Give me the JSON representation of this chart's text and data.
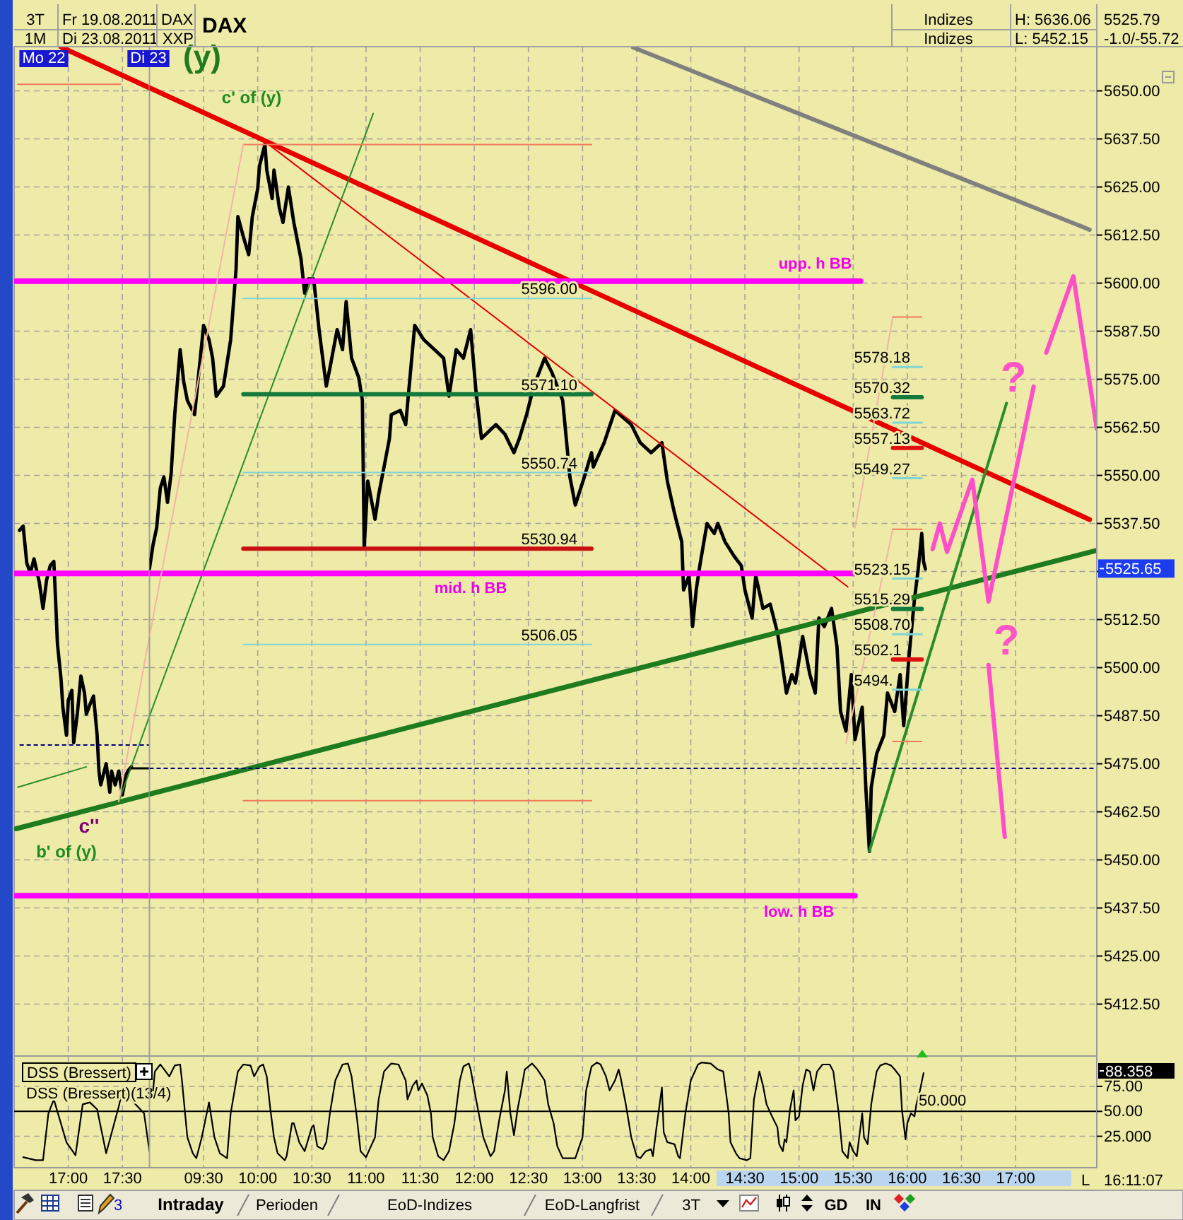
{
  "chart_data": [
    {
      "type": "line",
      "tick_labels": false,
      "grid": true,
      "line_style": "solid",
      "xlim": [
        "2011-08-22T16:30",
        "2011-08-22T17:45"
      ],
      "xticks": [
        {
          "value": "2011-08-22T17:00",
          "label": null
        },
        {
          "value": "2011-08-22T17:30",
          "label": null
        }
      ],
      "ylim": [
        5399,
        5661.5
      ],
      "yticks": [
        {
          "value": 5412.5,
          "label": null
        },
        {
          "value": 5425,
          "label": null
        },
        {
          "value": 5437.5,
          "label": null
        },
        {
          "value": 5450,
          "label": null
        },
        {
          "value": 5462.5,
          "label": null
        },
        {
          "value": 5475,
          "label": null
        },
        {
          "value": 5487.5,
          "label": null
        },
        {
          "value": 5500,
          "label": null
        },
        {
          "value": 5512.5,
          "label": null
        },
        {
          "value": 5525,
          "label": null
        },
        {
          "value": 5537.5,
          "label": null
        },
        {
          "value": 5550,
          "label": null
        },
        {
          "value": 5562.5,
          "label": null
        },
        {
          "value": 5575,
          "label": null
        },
        {
          "value": 5587.5,
          "label": null
        },
        {
          "value": 5600,
          "label": null
        },
        {
          "value": 5612.5,
          "label": null
        },
        {
          "value": 5625,
          "label": null
        },
        {
          "value": 5637.5,
          "label": null
        },
        {
          "value": 5650,
          "label": null
        }
      ],
      "annotations": [
        "Mo 22",
        "c''",
        "b' of (y)"
      ],
      "series": [
        {
          "color": "#000000",
          "x": [
            "2011-08-22T16:33",
            "2011-08-22T16:35",
            "2011-08-22T16:37",
            "2011-08-22T16:39",
            "2011-08-22T16:41",
            "2011-08-22T16:44",
            "2011-08-22T16:46",
            "2011-08-22T16:48",
            "2011-08-22T16:50",
            "2011-08-22T16:52",
            "2011-08-22T16:53",
            "2011-08-22T16:54",
            "2011-08-22T16:56",
            "2011-08-22T16:57",
            "2011-08-22T16:59",
            "2011-08-22T17:00",
            "2011-08-22T17:02",
            "2011-08-22T17:03",
            "2011-08-22T17:05",
            "2011-08-22T17:07",
            "2011-08-22T17:09",
            "2011-08-22T17:10",
            "2011-08-22T17:12",
            "2011-08-22T17:14",
            "2011-08-22T17:16",
            "2011-08-22T17:17",
            "2011-08-22T17:18",
            "2011-08-22T17:21",
            "2011-08-22T17:23",
            "2011-08-22T17:24",
            "2011-08-22T17:26",
            "2011-08-22T17:28",
            "2011-08-22T17:30",
            "2011-08-22T17:32",
            "2011-08-22T17:33",
            "2011-08-22T17:35"
          ],
          "values": [
            5535.7,
            5536.8,
            5527.2,
            5524.6,
            5528.3,
            5522.1,
            5515.4,
            5522.8,
            5526.5,
            5527.6,
            5517.3,
            5506.2,
            5497.0,
            5489.7,
            5482.4,
            5491.5,
            5494.1,
            5480.5,
            5487.9,
            5497.8,
            5493.4,
            5487.9,
            5490.4,
            5492.6,
            5482.4,
            5473.1,
            5469.5,
            5475.0,
            5467.6,
            5473.1,
            5469.5,
            5473.1,
            5466.9,
            5472.1,
            5473.1,
            5474.2
          ]
        },
        {
          "color": "#e60000",
          "x": [
            "2011-08-22T16:56",
            "2011-08-22T17:45"
          ],
          "values": [
            5661.4,
            5650.8
          ]
        },
        {
          "color": "#1e7b1e",
          "x": [
            "2011-08-22T16:31",
            "2011-08-22T17:45"
          ],
          "values": [
            5458.1,
            5467.1
          ]
        },
        {
          "color": "#2a8c2a",
          "x": [
            "2011-08-22T17:28",
            "2011-08-22T17:45"
          ],
          "values": [
            5465.2,
            5487.4
          ]
        },
        {
          "color": "#2a8c2a",
          "x": [
            "2011-08-22T16:32",
            "2011-08-22T17:10"
          ],
          "values": [
            5468.9,
            5474.2
          ]
        },
        {
          "color": "#ff00ff",
          "x": [
            "2011-08-22T16:31",
            "2011-08-22T17:45"
          ],
          "values": [
            5600.5,
            5600.5
          ]
        },
        {
          "color": "#ff00ff",
          "x": [
            "2011-08-22T16:31",
            "2011-08-22T17:45"
          ],
          "values": [
            5524.5,
            5524.5
          ]
        },
        {
          "color": "#ff00ff",
          "x": [
            "2011-08-22T16:31",
            "2011-08-22T17:45"
          ],
          "values": [
            5440.7,
            5440.7
          ]
        },
        {
          "color": "#f27a5a",
          "x": [
            "2011-08-22T16:32",
            "2011-08-22T17:29"
          ],
          "values": [
            5651.7,
            5651.7
          ]
        },
        {
          "color": "#f4b4a4",
          "x": [
            "2011-08-22T17:28",
            "2011-08-22T17:45"
          ],
          "values": [
            5465.2,
            5508.2
          ]
        },
        {
          "color": "#000080",
          "line_style": "dashed",
          "x": [
            "2011-08-22T16:33",
            "2011-08-22T17:45"
          ],
          "values": [
            5479.9,
            5479.9
          ]
        },
        {
          "color": "#000000",
          "x": [
            "2011-08-22T17:35",
            "2011-08-22T17:45"
          ],
          "values": [
            5473.8,
            5473.8
          ]
        }
      ]
    },
    {
      "type": "line",
      "title": "DAX",
      "tick_labels": "y",
      "grid": true,
      "line_style": "solid",
      "xlim": [
        "2011-08-23T09:00",
        "2011-08-23T17:45"
      ],
      "xticks": [
        {
          "value": "2011-08-23T09:30",
          "label": null
        },
        {
          "value": "2011-08-23T10:00",
          "label": null
        },
        {
          "value": "2011-08-23T10:30",
          "label": null
        },
        {
          "value": "2011-08-23T11:00",
          "label": null
        },
        {
          "value": "2011-08-23T11:30",
          "label": null
        },
        {
          "value": "2011-08-23T12:00",
          "label": null
        },
        {
          "value": "2011-08-23T12:30",
          "label": null
        },
        {
          "value": "2011-08-23T13:00",
          "label": null
        },
        {
          "value": "2011-08-23T13:30",
          "label": null
        },
        {
          "value": "2011-08-23T14:00",
          "label": null
        },
        {
          "value": "2011-08-23T14:30",
          "label": null
        },
        {
          "value": "2011-08-23T15:00",
          "label": null
        },
        {
          "value": "2011-08-23T15:30",
          "label": null
        },
        {
          "value": "2011-08-23T16:00",
          "label": null
        },
        {
          "value": "2011-08-23T16:30",
          "label": null
        },
        {
          "value": "2011-08-23T17:00",
          "label": null
        }
      ],
      "ylim": [
        5399,
        5661.5
      ],
      "yticks": [
        {
          "value": 5412.5,
          "label": "5412.50"
        },
        {
          "value": 5425,
          "label": "5425.00"
        },
        {
          "value": 5437.5,
          "label": "5437.50"
        },
        {
          "value": 5450,
          "label": "5450.00"
        },
        {
          "value": 5462.5,
          "label": "5462.50"
        },
        {
          "value": 5475,
          "label": "5475.00"
        },
        {
          "value": 5487.5,
          "label": "5487.50"
        },
        {
          "value": 5500,
          "label": "5500.00"
        },
        {
          "value": 5512.5,
          "label": "5512.50"
        },
        {
          "value": 5525,
          "label": null
        },
        {
          "value": 5537.5,
          "label": "5537.50"
        },
        {
          "value": 5550,
          "label": "5550.00"
        },
        {
          "value": 5562.5,
          "label": "5562.50"
        },
        {
          "value": 5575,
          "label": "5575.00"
        },
        {
          "value": 5587.5,
          "label": "5587.50"
        },
        {
          "value": 5600,
          "label": "5600.00"
        },
        {
          "value": 5612.5,
          "label": "5612.50"
        },
        {
          "value": 5625,
          "label": "5625.00"
        },
        {
          "value": 5637.5,
          "label": "5637.50"
        },
        {
          "value": 5650,
          "label": "5650.00"
        }
      ],
      "annotations": [
        "3T",
        "Fr 19.08.2011",
        "DAX",
        "1M",
        "Di 23.08.2011",
        "XXP",
        "Indizes",
        "Indizes",
        "H: 5636.06",
        "L: 5452.15",
        "5525.79",
        "-1.0/-55.72",
        "Di 23",
        "(y)",
        "c' of (y)",
        "?",
        "?",
        "5525.65",
        {
          "text": "upp. h BB",
          "x": "2011-08-23T15:34",
          "y": 5600.5
        },
        {
          "text": "mid. h BB",
          "x": "2011-08-23T11:58",
          "y": 5524.5
        },
        {
          "text": "low. h BB",
          "x": "2011-08-23T15:00",
          "y": 5440.7
        },
        {
          "text": "5596.00",
          "x": "2011-08-23T13:05",
          "y": 5596.0
        },
        {
          "text": "5571.10",
          "x": "2011-08-23T13:05",
          "y": 5571.1
        },
        {
          "text": "5550.74",
          "x": "2011-08-23T13:05",
          "y": 5550.74
        },
        {
          "text": "5530.94",
          "x": "2011-08-23T13:05",
          "y": 5530.94
        },
        {
          "text": "5506.05",
          "x": "2011-08-23T13:05",
          "y": 5506.05
        },
        {
          "text": "5578.18",
          "x": "2011-08-23T15:52",
          "y": 5578.18
        },
        {
          "text": "5570.32",
          "x": "2011-08-23T15:52",
          "y": 5570.32
        },
        {
          "text": "5563.72",
          "x": "2011-08-23T15:52",
          "y": 5563.72
        },
        {
          "text": "5557.13",
          "x": "2011-08-23T15:52",
          "y": 5557.13
        },
        {
          "text": "5549.27",
          "x": "2011-08-23T15:52",
          "y": 5549.27
        },
        {
          "text": "5523.15",
          "x": "2011-08-23T15:52",
          "y": 5523.15
        },
        {
          "text": "5515.29",
          "x": "2011-08-23T15:52",
          "y": 5515.29
        },
        {
          "text": "5508.70",
          "x": "2011-08-23T15:52",
          "y": 5508.7
        },
        {
          "text": "5502.1",
          "x": "2011-08-23T15:52",
          "y": 5502.11
        },
        {
          "text": "5494.",
          "x": "2011-08-23T15:52",
          "y": 5494.25
        }
      ],
      "series": [
        {
          "color": "#000000",
          "x": [
            "2011-08-23T09:00",
            "2011-08-23T09:02",
            "2011-08-23T09:04",
            "2011-08-23T09:06",
            "2011-08-23T09:08",
            "2011-08-23T09:10",
            "2011-08-23T09:12",
            "2011-08-23T09:14",
            "2011-08-23T09:17",
            "2011-08-23T09:19",
            "2011-08-23T09:21",
            "2011-08-23T09:25",
            "2011-08-23T09:30",
            "2011-08-23T09:33",
            "2011-08-23T09:35",
            "2011-08-23T09:37",
            "2011-08-23T09:41",
            "2011-08-23T09:45",
            "2011-08-23T09:48",
            "2011-08-23T09:49",
            "2011-08-23T09:52",
            "2011-08-23T09:55",
            "2011-08-23T09:57",
            "2011-08-23T10:00",
            "2011-08-23T10:01",
            "2011-08-23T10:04",
            "2011-08-23T10:05",
            "2011-08-23T10:08",
            "2011-08-23T10:09",
            "2011-08-23T10:12",
            "2011-08-23T10:14",
            "2011-08-23T10:17",
            "2011-08-23T10:20",
            "2011-08-23T10:24",
            "2011-08-23T10:26",
            "2011-08-23T10:28",
            "2011-08-23T10:31",
            "2011-08-23T10:34",
            "2011-08-23T10:36",
            "2011-08-23T10:38",
            "2011-08-23T10:40",
            "2011-08-23T10:44",
            "2011-08-23T10:47",
            "2011-08-23T10:49",
            "2011-08-23T10:52",
            "2011-08-23T10:56",
            "2011-08-23T10:58",
            "2011-08-23T10:59",
            "2011-08-23T11:01",
            "2011-08-23T11:05",
            "2011-08-23T11:07",
            "2011-08-23T11:10",
            "2011-08-23T11:13",
            "2011-08-23T11:14",
            "2011-08-23T11:19",
            "2011-08-23T11:22",
            "2011-08-23T11:27",
            "2011-08-23T11:32",
            "2011-08-23T11:38",
            "2011-08-23T11:43",
            "2011-08-23T11:46",
            "2011-08-23T11:50",
            "2011-08-23T11:54",
            "2011-08-23T11:58",
            "2011-08-23T12:01",
            "2011-08-23T12:04",
            "2011-08-23T12:12",
            "2011-08-23T12:17",
            "2011-08-23T12:22",
            "2011-08-23T12:25",
            "2011-08-23T12:29",
            "2011-08-23T12:33",
            "2011-08-23T12:39",
            "2011-08-23T12:43",
            "2011-08-23T12:49",
            "2011-08-23T12:53",
            "2011-08-23T12:56",
            "2011-08-23T13:01",
            "2011-08-23T13:05",
            "2011-08-23T13:06",
            "2011-08-23T13:12",
            "2011-08-23T13:18",
            "2011-08-23T13:27",
            "2011-08-23T13:32",
            "2011-08-23T13:38",
            "2011-08-23T13:44",
            "2011-08-23T13:47",
            "2011-08-23T13:51",
            "2011-08-23T13:55",
            "2011-08-23T13:56",
            "2011-08-23T13:59",
            "2011-08-23T14:01",
            "2011-08-23T14:03",
            "2011-08-23T14:05",
            "2011-08-23T14:09",
            "2011-08-23T14:13",
            "2011-08-23T14:15",
            "2011-08-23T14:19",
            "2011-08-23T14:24",
            "2011-08-23T14:28",
            "2011-08-23T14:30",
            "2011-08-23T14:34",
            "2011-08-23T14:36",
            "2011-08-23T14:40",
            "2011-08-23T14:44",
            "2011-08-23T14:48",
            "2011-08-23T14:50",
            "2011-08-23T14:53",
            "2011-08-23T14:56",
            "2011-08-23T14:58",
            "2011-08-23T15:02",
            "2011-08-23T15:06",
            "2011-08-23T15:09",
            "2011-08-23T15:11",
            "2011-08-23T15:14",
            "2011-08-23T15:18",
            "2011-08-23T15:21",
            "2011-08-23T15:23",
            "2011-08-23T15:26",
            "2011-08-23T15:29",
            "2011-08-23T15:31",
            "2011-08-23T15:35",
            "2011-08-23T15:37",
            "2011-08-23T15:39",
            "2011-08-23T15:40",
            "2011-08-23T15:43",
            "2011-08-23T15:47",
            "2011-08-23T15:49",
            "2011-08-23T15:53",
            "2011-08-23T15:56",
            "2011-08-23T15:58",
            "2011-08-23T16:01",
            "2011-08-23T16:04",
            "2011-08-23T16:06",
            "2011-08-23T16:08",
            "2011-08-23T16:09",
            "2011-08-23T16:10"
          ],
          "values": [
            5525.7,
            5532.0,
            5536.4,
            5546.7,
            5549.6,
            5543.0,
            5550.4,
            5565.8,
            5582.7,
            5574.3,
            5569.5,
            5565.8,
            5589.0,
            5585.3,
            5580.5,
            5570.6,
            5573.2,
            5585.3,
            5603.7,
            5617.3,
            5612.1,
            5607.4,
            5617.3,
            5624.6,
            5630.5,
            5636.1,
            5629.4,
            5622.0,
            5629.4,
            5619.5,
            5615.8,
            5625.0,
            5615.8,
            5606.2,
            5597.4,
            5601.1,
            5601.1,
            5587.9,
            5580.5,
            5573.2,
            5577.9,
            5587.9,
            5582.7,
            5595.2,
            5580.5,
            5575.4,
            5569.5,
            5531.3,
            5548.5,
            5538.6,
            5544.9,
            5552.2,
            5559.6,
            5565.8,
            5566.9,
            5563.2,
            5589.0,
            5585.3,
            5582.7,
            5580.5,
            5570.6,
            5582.7,
            5580.5,
            5587.9,
            5571.7,
            5559.6,
            5563.2,
            5560.7,
            5555.9,
            5559.6,
            5565.8,
            5573.2,
            5580.5,
            5576.8,
            5569.5,
            5549.6,
            5542.3,
            5549.6,
            5555.9,
            5552.2,
            5558.5,
            5566.9,
            5563.2,
            5558.5,
            5555.9,
            5558.5,
            5548.5,
            5540.1,
            5532.7,
            5520.2,
            5523.9,
            5510.7,
            5520.2,
            5526.5,
            5537.5,
            5534.9,
            5537.5,
            5532.7,
            5529.0,
            5526.5,
            5520.2,
            5512.9,
            5523.9,
            5515.4,
            5516.5,
            5509.2,
            5503.3,
            5493.4,
            5498.2,
            5496.0,
            5508.1,
            5498.2,
            5493.4,
            5512.9,
            5510.7,
            5515.4,
            5505.5,
            5488.6,
            5483.5,
            5498.2,
            5481.3,
            5489.7,
            5468.8,
            5452.2,
            5468.8,
            5477.6,
            5482.4,
            5493.4,
            5488.6,
            5498.2,
            5484.9,
            5503.3,
            5518.0,
            5525.4,
            5534.9,
            5527.6,
            5525.65
          ]
        },
        {
          "color": "#e60000",
          "x": [
            "2011-08-23T09:00",
            "2011-08-23T17:41"
          ],
          "values": [
            5650.8,
            5538.5
          ]
        },
        {
          "color": "#e60000",
          "x": [
            "2011-08-23T10:04",
            "2011-08-23T15:27"
          ],
          "values": [
            5636.8,
            5521.0
          ]
        },
        {
          "color": "#808080",
          "x": [
            "2011-08-23T13:28",
            "2011-08-23T17:41"
          ],
          "values": [
            5661.3,
            5613.9
          ]
        },
        {
          "color": "#1e7b1e",
          "x": [
            "2011-08-23T09:00",
            "2011-08-23T17:45"
          ],
          "values": [
            5467.1,
            5530.5
          ]
        },
        {
          "color": "#2a8c2a",
          "x": [
            "2011-08-23T09:00",
            "2011-08-23T11:04"
          ],
          "values": [
            5487.4,
            5644.1
          ]
        },
        {
          "color": "#2a8c2a",
          "x": [
            "2011-08-23T15:39",
            "2011-08-23T16:55"
          ],
          "values": [
            5452.3,
            5568.8
          ]
        },
        {
          "color": "#ff00ff",
          "x": [
            "2011-08-23T09:00",
            "2011-08-23T15:34"
          ],
          "values": [
            5600.5,
            5600.5
          ]
        },
        {
          "color": "#ff00ff",
          "x": [
            "2011-08-23T09:00",
            "2011-08-23T15:31"
          ],
          "values": [
            5524.5,
            5524.5
          ]
        },
        {
          "color": "#ff00ff",
          "x": [
            "2011-08-23T09:00",
            "2011-08-23T15:31"
          ],
          "values": [
            5440.7,
            5440.7
          ]
        },
        {
          "color": "#137a3c",
          "x": [
            "2011-08-23T09:52",
            "2011-08-23T13:05"
          ],
          "values": [
            5571.1,
            5571.1
          ]
        },
        {
          "color": "#c81010",
          "x": [
            "2011-08-23T09:52",
            "2011-08-23T13:05"
          ],
          "values": [
            5530.94,
            5530.94
          ]
        },
        {
          "color": "#7fd6d6",
          "x": [
            "2011-08-23T09:52",
            "2011-08-23T13:05"
          ],
          "values": [
            5596.0,
            5596.0
          ]
        },
        {
          "color": "#7fd6d6",
          "x": [
            "2011-08-23T09:52",
            "2011-08-23T13:05"
          ],
          "values": [
            5550.74,
            5550.74
          ]
        },
        {
          "color": "#7fd6d6",
          "x": [
            "2011-08-23T09:52",
            "2011-08-23T13:05"
          ],
          "values": [
            5506.05,
            5506.05
          ]
        },
        {
          "color": "#f27a5a",
          "x": [
            "2011-08-23T09:52",
            "2011-08-23T13:05"
          ],
          "values": [
            5636.06,
            5636.06
          ]
        },
        {
          "color": "#f27a5a",
          "x": [
            "2011-08-23T09:52",
            "2011-08-23T13:05"
          ],
          "values": [
            5465.4,
            5465.4
          ]
        },
        {
          "color": "#f4b4a4",
          "x": [
            "2011-08-23T09:00",
            "2011-08-23T09:52"
          ],
          "values": [
            5508.2,
            5636.06
          ]
        },
        {
          "color": "#f4b4a4",
          "x": [
            "2011-08-23T15:31",
            "2011-08-23T15:52"
          ],
          "values": [
            5536.4,
            5591.2
          ]
        },
        {
          "color": "#f4b4a4",
          "x": [
            "2011-08-23T15:26",
            "2011-08-23T15:52"
          ],
          "values": [
            5480.4,
            5536.0
          ]
        },
        {
          "color": "#f27a5a",
          "x": [
            "2011-08-23T15:52",
            "2011-08-23T16:08"
          ],
          "values": [
            5591.2,
            5591.2
          ]
        },
        {
          "color": "#7fd6d6",
          "x": [
            "2011-08-23T15:52",
            "2011-08-23T16:08"
          ],
          "values": [
            5578.18,
            5578.18
          ]
        },
        {
          "color": "#137a3c",
          "x": [
            "2011-08-23T15:52",
            "2011-08-23T16:08"
          ],
          "values": [
            5570.32,
            5570.32
          ]
        },
        {
          "color": "#7fd6d6",
          "x": [
            "2011-08-23T15:52",
            "2011-08-23T16:08"
          ],
          "values": [
            5563.72,
            5563.72
          ]
        },
        {
          "color": "#e01010",
          "x": [
            "2011-08-23T15:52",
            "2011-08-23T16:08"
          ],
          "values": [
            5557.13,
            5557.13
          ]
        },
        {
          "color": "#7fd6d6",
          "x": [
            "2011-08-23T15:52",
            "2011-08-23T16:08"
          ],
          "values": [
            5549.27,
            5549.27
          ]
        },
        {
          "color": "#f27a5a",
          "x": [
            "2011-08-23T15:52",
            "2011-08-23T16:08"
          ],
          "values": [
            5536.0,
            5536.0
          ]
        },
        {
          "color": "#7fd6d6",
          "x": [
            "2011-08-23T15:52",
            "2011-08-23T16:08"
          ],
          "values": [
            5523.15,
            5523.15
          ]
        },
        {
          "color": "#137a3c",
          "x": [
            "2011-08-23T15:52",
            "2011-08-23T16:08"
          ],
          "values": [
            5515.29,
            5515.29
          ]
        },
        {
          "color": "#7fd6d6",
          "x": [
            "2011-08-23T15:52",
            "2011-08-23T16:08"
          ],
          "values": [
            5508.7,
            5508.7
          ]
        },
        {
          "color": "#e01010",
          "x": [
            "2011-08-23T15:52",
            "2011-08-23T16:08"
          ],
          "values": [
            5502.11,
            5502.11
          ]
        },
        {
          "color": "#7fd6d6",
          "x": [
            "2011-08-23T15:52",
            "2011-08-23T16:08"
          ],
          "values": [
            5494.25,
            5494.25
          ]
        },
        {
          "color": "#f27a5a",
          "x": [
            "2011-08-23T15:52",
            "2011-08-23T16:08"
          ],
          "values": [
            5480.8,
            5480.8
          ]
        },
        {
          "color": "#000080",
          "line_style": "dashed",
          "x": [
            "2011-08-23T09:00",
            "2011-08-23T17:45"
          ],
          "values": [
            5473.8,
            5473.8
          ]
        },
        {
          "color": "#ff4fc8",
          "x": [
            "2011-08-23T16:14",
            "2011-08-23T16:18",
            "2011-08-23T16:22",
            "2011-08-23T16:36",
            "2011-08-23T16:45",
            "2011-08-23T17:10"
          ],
          "values": [
            5530.8,
            5537.5,
            5530.1,
            5548.9,
            5517.2,
            5573.1
          ]
        },
        {
          "color": "#ff4fc8",
          "x": [
            "2011-08-23T17:17",
            "2011-08-23T17:32",
            "2011-08-23T17:45"
          ],
          "values": [
            5581.9,
            5601.8,
            5562.1
          ]
        },
        {
          "color": "#ff4fc8",
          "x": [
            "2011-08-23T16:45",
            "2011-08-23T16:54"
          ],
          "values": [
            5500.7,
            5456.0
          ]
        }
      ]
    },
    {
      "type": "line",
      "title": "DSS (Bressert)",
      "legend": "top",
      "tick_labels": "x",
      "grid": true,
      "xlim": [
        "2011-08-22T16:30",
        "2011-08-22T17:45"
      ],
      "xticks": [
        {
          "value": "2011-08-22T17:00",
          "label": "17:00"
        },
        {
          "value": "2011-08-22T17:30",
          "label": "17:30"
        }
      ],
      "ylim": [
        -6.5,
        105.5
      ],
      "yticks": [
        {
          "value": 25,
          "label": null
        },
        {
          "value": 50,
          "label": null
        },
        {
          "value": 75,
          "label": null
        }
      ],
      "ref_lines": [
        {
          "axis": "y",
          "value": 50,
          "color": "#000000"
        }
      ],
      "series": [
        {
          "name": "DSS (Bressert)(13/4)",
          "color": "#000000",
          "x": [
            "2011-08-22T16:35",
            "2011-08-22T16:42",
            "2011-08-22T16:46",
            "2011-08-22T16:49",
            "2011-08-22T16:52",
            "2011-08-22T16:59",
            "2011-08-22T17:04",
            "2011-08-22T17:08",
            "2011-08-22T17:12",
            "2011-08-22T17:16",
            "2011-08-22T17:21",
            "2011-08-22T17:28",
            "2011-08-22T17:30",
            "2011-08-22T17:42",
            "2011-08-22T17:45"
          ],
          "values": [
            4,
            1,
            1,
            48,
            62,
            19,
            6,
            57,
            59,
            52,
            8,
            55,
            71,
            48,
            10
          ]
        }
      ]
    },
    {
      "type": "line",
      "grid": true,
      "xlim": [
        "2011-08-23T09:00",
        "2011-08-23T17:45"
      ],
      "xticks": [
        {
          "value": "2011-08-23T09:30",
          "label": "09:30"
        },
        {
          "value": "2011-08-23T10:00",
          "label": "10:00"
        },
        {
          "value": "2011-08-23T10:30",
          "label": "10:30"
        },
        {
          "value": "2011-08-23T11:00",
          "label": "11:00"
        },
        {
          "value": "2011-08-23T11:30",
          "label": "11:30"
        },
        {
          "value": "2011-08-23T12:00",
          "label": "12:00"
        },
        {
          "value": "2011-08-23T12:30",
          "label": "12:30"
        },
        {
          "value": "2011-08-23T13:00",
          "label": "13:00"
        },
        {
          "value": "2011-08-23T13:30",
          "label": "13:30"
        },
        {
          "value": "2011-08-23T14:00",
          "label": "14:00"
        },
        {
          "value": "2011-08-23T14:30",
          "label": "14:30"
        },
        {
          "value": "2011-08-23T15:00",
          "label": "15:00"
        },
        {
          "value": "2011-08-23T15:30",
          "label": "15:30"
        },
        {
          "value": "2011-08-23T16:00",
          "label": "16:00"
        },
        {
          "value": "2011-08-23T16:30",
          "label": "16:30"
        },
        {
          "value": "2011-08-23T17:00",
          "label": "17:00"
        }
      ],
      "ylim": [
        -6.5,
        105.5
      ],
      "yticks": [
        {
          "value": 25,
          "label": "25.000"
        },
        {
          "value": 50,
          "label": "50.00"
        },
        {
          "value": 75,
          "label": "75.00"
        }
      ],
      "ref_lines": [
        {
          "axis": "y",
          "value": 50,
          "label": "50.000",
          "color": "#000000"
        }
      ],
      "annotations": [
        "88.358",
        "L"
      ],
      "series": [
        {
          "color": "#000000",
          "x": [
            "2011-08-23T09:02",
            "2011-08-23T09:03",
            "2011-08-23T09:06",
            "2011-08-23T09:09",
            "2011-08-23T09:11",
            "2011-08-23T09:14",
            "2011-08-23T09:17",
            "2011-08-23T09:18",
            "2011-08-23T09:21",
            "2011-08-23T09:24",
            "2011-08-23T09:26",
            "2011-08-23T09:29",
            "2011-08-23T09:33",
            "2011-08-23T09:36",
            "2011-08-23T09:39",
            "2011-08-23T09:43",
            "2011-08-23T09:45",
            "2011-08-23T09:49",
            "2011-08-23T09:52",
            "2011-08-23T09:56",
            "2011-08-23T09:58",
            "2011-08-23T10:01",
            "2011-08-23T10:03",
            "2011-08-23T10:05",
            "2011-08-23T10:07",
            "2011-08-23T10:09",
            "2011-08-23T10:11",
            "2011-08-23T10:15",
            "2011-08-23T10:16",
            "2011-08-23T10:19",
            "2011-08-23T10:20",
            "2011-08-23T10:23",
            "2011-08-23T10:26",
            "2011-08-23T10:30",
            "2011-08-23T10:31",
            "2011-08-23T10:33",
            "2011-08-23T10:36",
            "2011-08-23T10:38",
            "2011-08-23T10:40",
            "2011-08-23T10:43",
            "2011-08-23T10:47",
            "2011-08-23T10:50",
            "2011-08-23T10:52",
            "2011-08-23T10:55",
            "2011-08-23T10:57",
            "2011-08-23T11:00",
            "2011-08-23T11:02",
            "2011-08-23T11:05",
            "2011-08-23T11:07",
            "2011-08-23T11:10",
            "2011-08-23T11:14",
            "2011-08-23T11:18",
            "2011-08-23T11:22",
            "2011-08-23T11:23",
            "2011-08-23T11:26",
            "2011-08-23T11:28",
            "2011-08-23T11:29",
            "2011-08-23T11:31",
            "2011-08-23T11:34",
            "2011-08-23T11:36",
            "2011-08-23T11:37",
            "2011-08-23T11:40",
            "2011-08-23T11:43",
            "2011-08-23T11:46",
            "2011-08-23T11:49",
            "2011-08-23T11:52",
            "2011-08-23T11:54",
            "2011-08-23T11:57",
            "2011-08-23T11:58",
            "2011-08-23T12:01",
            "2011-08-23T12:05",
            "2011-08-23T12:09",
            "2011-08-23T12:11",
            "2011-08-23T12:14",
            "2011-08-23T12:17",
            "2011-08-23T12:18",
            "2011-08-23T12:20",
            "2011-08-23T12:22",
            "2011-08-23T12:24",
            "2011-08-23T12:26",
            "2011-08-23T12:28",
            "2011-08-23T12:32",
            "2011-08-23T12:35",
            "2011-08-23T12:39",
            "2011-08-23T12:41",
            "2011-08-23T12:44",
            "2011-08-23T12:46",
            "2011-08-23T12:49",
            "2011-08-23T12:56",
            "2011-08-23T13:00",
            "2011-08-23T13:02",
            "2011-08-23T13:05",
            "2011-08-23T13:08",
            "2011-08-23T13:10",
            "2011-08-23T13:13",
            "2011-08-23T13:15",
            "2011-08-23T13:18",
            "2011-08-23T13:20",
            "2011-08-23T13:21",
            "2011-08-23T13:24",
            "2011-08-23T13:27",
            "2011-08-23T13:30",
            "2011-08-23T13:32",
            "2011-08-23T13:35",
            "2011-08-23T13:38",
            "2011-08-23T13:39",
            "2011-08-23T13:41",
            "2011-08-23T13:44",
            "2011-08-23T13:45",
            "2011-08-23T13:47",
            "2011-08-23T13:51",
            "2011-08-23T13:53",
            "2011-08-23T13:54",
            "2011-08-23T13:57",
            "2011-08-23T14:00",
            "2011-08-23T14:04",
            "2011-08-23T14:06",
            "2011-08-23T14:11",
            "2011-08-23T14:15",
            "2011-08-23T14:18",
            "2011-08-23T14:21",
            "2011-08-23T14:22",
            "2011-08-23T14:25",
            "2011-08-23T14:27",
            "2011-08-23T14:31",
            "2011-08-23T14:33",
            "2011-08-23T14:35",
            "2011-08-23T14:38",
            "2011-08-23T14:40",
            "2011-08-23T14:42",
            "2011-08-23T14:45",
            "2011-08-23T14:48",
            "2011-08-23T14:49",
            "2011-08-23T14:51",
            "2011-08-23T14:52",
            "2011-08-23T14:53",
            "2011-08-23T14:55",
            "2011-08-23T14:57",
            "2011-08-23T14:58",
            "2011-08-23T15:00",
            "2011-08-23T15:02",
            "2011-08-23T15:04",
            "2011-08-23T15:06",
            "2011-08-23T15:08",
            "2011-08-23T15:10",
            "2011-08-23T15:13",
            "2011-08-23T15:17",
            "2011-08-23T15:19",
            "2011-08-23T15:22",
            "2011-08-23T15:24",
            "2011-08-23T15:27",
            "2011-08-23T15:28",
            "2011-08-23T15:30",
            "2011-08-23T15:32",
            "2011-08-23T15:35",
            "2011-08-23T15:36",
            "2011-08-23T15:38",
            "2011-08-23T15:40",
            "2011-08-23T15:43",
            "2011-08-23T15:45",
            "2011-08-23T15:48",
            "2011-08-23T15:51",
            "2011-08-23T15:53",
            "2011-08-23T15:56",
            "2011-08-23T15:57",
            "2011-08-23T15:59",
            "2011-08-23T16:00",
            "2011-08-23T16:02",
            "2011-08-23T16:04",
            "2011-08-23T16:05",
            "2011-08-23T16:07",
            "2011-08-23T16:09"
          ],
          "values": [
            71,
            90,
            97,
            90,
            85,
            96,
            97,
            81,
            24,
            8,
            3,
            24,
            59,
            24,
            8,
            3,
            48,
            90,
            97,
            96,
            85,
            95,
            97,
            85,
            52,
            24,
            8,
            1,
            5,
            38,
            38,
            19,
            10,
            34,
            36,
            15,
            12,
            19,
            48,
            81,
            97,
            98,
            85,
            43,
            10,
            4,
            12,
            24,
            62,
            90,
            98,
            97,
            81,
            62,
            76,
            81,
            71,
            78,
            66,
            48,
            24,
            5,
            1,
            10,
            38,
            81,
            95,
            98,
            92,
            62,
            24,
            5,
            10,
            43,
            71,
            90,
            48,
            26,
            52,
            71,
            92,
            98,
            92,
            81,
            57,
            38,
            15,
            3,
            3,
            24,
            71,
            95,
            99,
            97,
            85,
            71,
            81,
            92,
            85,
            57,
            24,
            5,
            3,
            10,
            12,
            5,
            34,
            74,
            29,
            19,
            17,
            5,
            3,
            48,
            81,
            97,
            99,
            98,
            92,
            90,
            48,
            19,
            8,
            3,
            1,
            3,
            62,
            90,
            76,
            57,
            45,
            34,
            17,
            10,
            22,
            19,
            52,
            71,
            41,
            45,
            76,
            92,
            90,
            71,
            90,
            97,
            97,
            90,
            48,
            10,
            3,
            19,
            10,
            5,
            48,
            24,
            17,
            57,
            90,
            96,
            98,
            96,
            92,
            85,
            52,
            22,
            38,
            48,
            45,
            57,
            71,
            88.358
          ]
        }
      ]
    },
    {
      "type": "other",
      "annotations": [
        "Intraday",
        "Perioden",
        "EoD-Indizes",
        "EoD-Langfrist",
        "3",
        "3T",
        "GD",
        "IN",
        "16:11:07"
      ]
    }
  ]
}
